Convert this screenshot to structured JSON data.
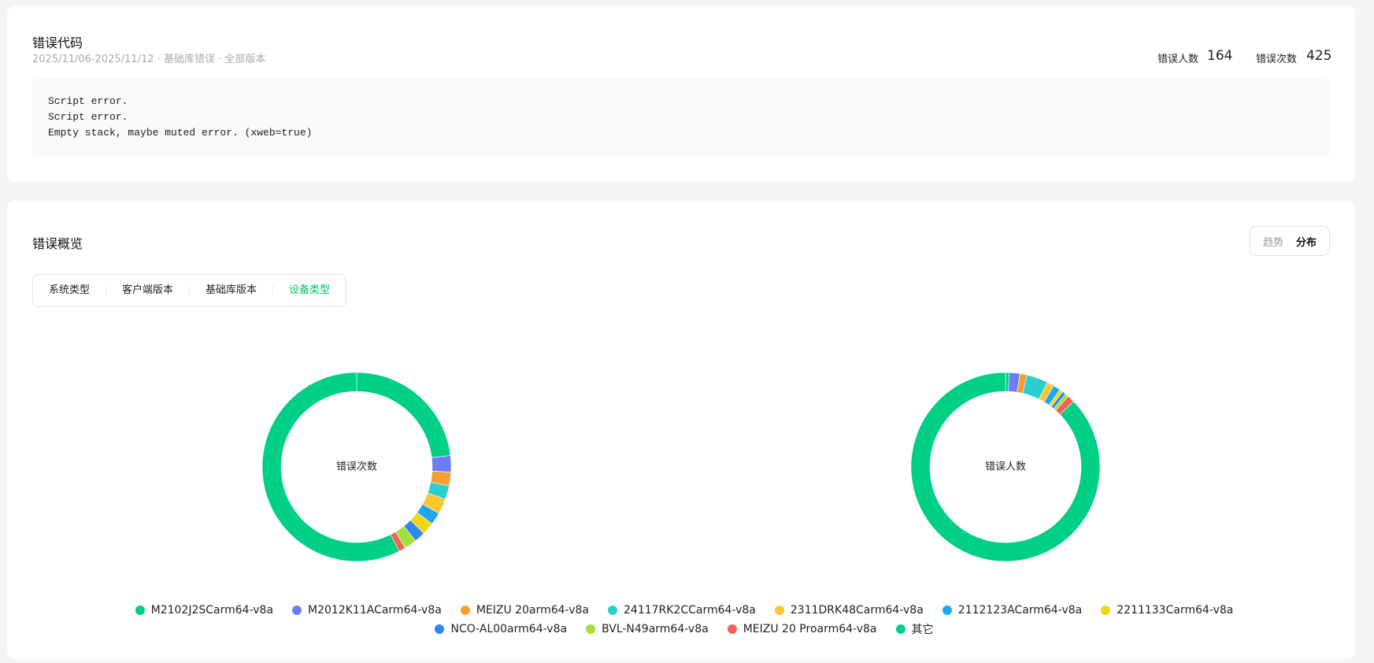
{
  "header": {
    "title": "错误代码",
    "subtitle": "2025/11/06-2025/11/12 · 基础库错误 · 全部版本",
    "stats": [
      {
        "label": "错误人数",
        "value": 164
      },
      {
        "label": "错误次数",
        "value": 425
      }
    ]
  },
  "code": {
    "lines": [
      "Script error.",
      "Script error.",
      "Empty stack, maybe muted error. (xweb=true)"
    ]
  },
  "overview": {
    "title": "错误概览",
    "toggle": [
      "趋势",
      "分布"
    ],
    "toggle_active": 1,
    "tabs": [
      "系统类型",
      "客户端版本",
      "基础库版本",
      "设备类型"
    ],
    "tab_active": 3
  },
  "chart_data": {
    "type": "pie",
    "donut": true,
    "categories": [
      "M2102J2SCarm64-v8a",
      "M2012K11ACarm64-v8a",
      "MEIZU 20arm64-v8a",
      "24117RK2CCarm64-v8a",
      "2311DRK48Carm64-v8a",
      "2112123ACarm64-v8a",
      "2211133Carm64-v8a",
      "NCO-AL00arm64-v8a",
      "BVL-N49arm64-v8a",
      "MEIZU 20 Proarm64-v8a",
      "其它"
    ],
    "colors": [
      "#00cf86",
      "#6b7cf6",
      "#f59f33",
      "#2ccfcf",
      "#fbc630",
      "#1ea7f5",
      "#f1d713",
      "#2f86f2",
      "#a2e03a",
      "#f2615a",
      "#00cf86"
    ],
    "series": [
      {
        "name": "错误次数",
        "values": [
          98,
          12,
          10,
          10,
          11,
          9,
          9,
          8,
          9,
          5,
          244
        ]
      },
      {
        "name": "错误人数",
        "values": [
          1,
          3,
          2,
          6,
          2,
          2,
          1,
          1,
          1,
          2,
          143
        ]
      }
    ]
  }
}
